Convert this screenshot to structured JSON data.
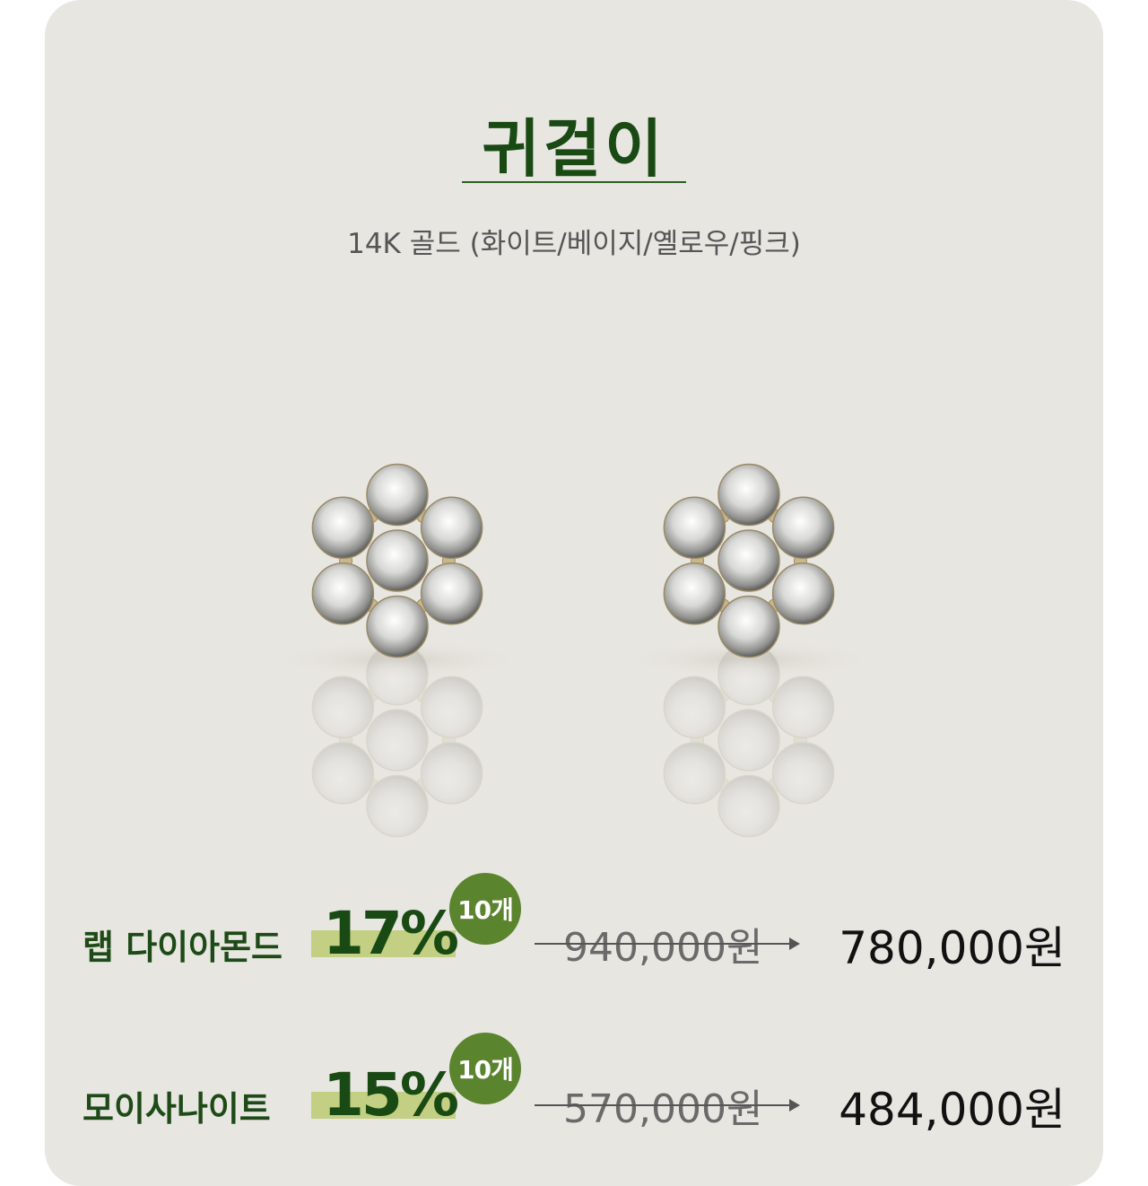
{
  "title": "귀걸이",
  "subtitle": "14K 골드 (화이트/베이지/옐로우/핑크)",
  "image": {
    "subject": "flower-cluster-stud-earrings",
    "count": 2
  },
  "products": [
    {
      "name": "랩 다이아몬드",
      "discount": "17%",
      "quantity_badge": "10개",
      "original_price": "940,000원",
      "sale_price": "780,000원"
    },
    {
      "name": "모이사나이트",
      "discount": "15%",
      "quantity_badge": "10개",
      "original_price": "570,000원",
      "sale_price": "484,000원"
    }
  ],
  "colors": {
    "card": "#e8e6e1",
    "title": "#1a4a14",
    "badge": "#5a842e",
    "highlight": "#c3cf82"
  }
}
